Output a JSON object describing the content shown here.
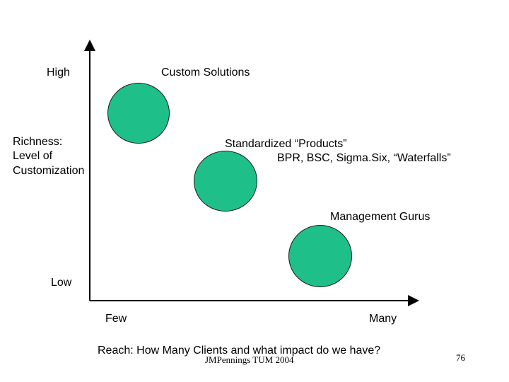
{
  "y_axis": {
    "high_label": "High",
    "title_lines": [
      "Richness:",
      "Level of",
      "Customization"
    ],
    "low_label": "Low"
  },
  "x_axis": {
    "few_label": "Few",
    "many_label": "Many",
    "title": "Reach: How Many Clients and what impact do we have?"
  },
  "bubbles": [
    {
      "label_lines": [
        "Custom Solutions"
      ]
    },
    {
      "label_lines": [
        "Standardized “Products”",
        "BPR, BSC, Sigma.Six, “Waterfalls”"
      ]
    },
    {
      "label_lines": [
        "Management Gurus"
      ]
    }
  ],
  "colors": {
    "bubble_fill": "#1fbf8a",
    "axis": "#000000"
  },
  "footer": {
    "author": "JMPennings TUM 2004",
    "page_number": "76"
  }
}
